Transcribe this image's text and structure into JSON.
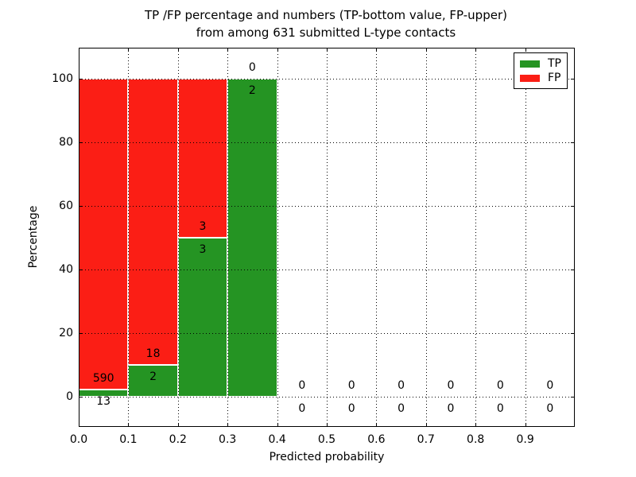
{
  "figure": {
    "title_line1": "TP /FP percentage and numbers (TP-bottom value, FP-upper)",
    "title_line2": "from among 631 submitted L-type contacts",
    "xlabel": "Predicted probability",
    "ylabel": "Percentage"
  },
  "legend": {
    "position": "upper right",
    "items": [
      {
        "label": "TP",
        "color": "#259423"
      },
      {
        "label": "FP",
        "color": "#fb1e15"
      }
    ]
  },
  "chart_data": {
    "type": "bar",
    "stacked": true,
    "title": "TP /FP percentage and numbers (TP-bottom value, FP-upper) from among 631 submitted L-type contacts",
    "xlabel": "Predicted probability",
    "ylabel": "Percentage",
    "total_contacts": 631,
    "xlim": [
      0.0,
      1.0
    ],
    "ylim": [
      -10,
      110
    ],
    "bin_width": 0.1,
    "bin_starts": [
      0.0,
      0.1,
      0.2,
      0.3,
      0.4,
      0.5,
      0.6,
      0.7,
      0.8,
      0.9
    ],
    "xtick_labels": [
      "0.0",
      "0.1",
      "0.2",
      "0.3",
      "0.4",
      "0.5",
      "0.6",
      "0.7",
      "0.8",
      "0.9"
    ],
    "ytick_values": [
      0,
      20,
      40,
      60,
      80,
      100
    ],
    "ytick_labels": [
      "0",
      "20",
      "40",
      "60",
      "80",
      "100"
    ],
    "grid": true,
    "legend_position": "upper right",
    "annotation_scheme": "TP-bottom value, FP-upper",
    "series": [
      {
        "name": "TP",
        "color": "#259423",
        "counts": [
          13,
          2,
          3,
          2,
          0,
          0,
          0,
          0,
          0,
          0
        ],
        "percentages": [
          2.16,
          10,
          50,
          100,
          0,
          0,
          0,
          0,
          0,
          0
        ]
      },
      {
        "name": "FP",
        "color": "#fb1e15",
        "counts": [
          590,
          18,
          3,
          0,
          0,
          0,
          0,
          0,
          0,
          0
        ],
        "percentages": [
          97.84,
          90,
          50,
          0,
          0,
          0,
          0,
          0,
          0,
          0
        ]
      }
    ]
  }
}
